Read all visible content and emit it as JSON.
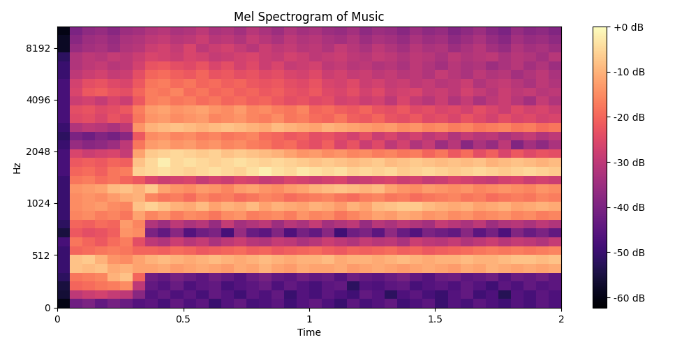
{
  "chart_data": {
    "type": "heatmap",
    "title": "Mel Spectrogram of Music",
    "x_label": "Time",
    "y_label": "Hz",
    "color": "magma",
    "log": "y",
    "xlim": [
      0,
      2
    ],
    "xticks": [
      0,
      0.5,
      1,
      1.5,
      2
    ],
    "ylim": [
      0,
      10955
    ],
    "yticks": [
      0,
      512,
      1024,
      2048,
      4096,
      8192
    ],
    "x": [
      0.025,
      0.075,
      0.125,
      0.175,
      0.225,
      0.275,
      0.325,
      0.375,
      0.425,
      0.475,
      0.525,
      0.575,
      0.625,
      0.675,
      0.725,
      0.775,
      0.825,
      0.875,
      0.925,
      0.975,
      1.025,
      1.075,
      1.125,
      1.175,
      1.225,
      1.275,
      1.325,
      1.375,
      1.425,
      1.475,
      1.525,
      1.575,
      1.625,
      1.675,
      1.725,
      1.775,
      1.825,
      1.875,
      1.925,
      1.975
    ],
    "y": [
      43,
      128,
      213,
      299,
      384,
      469,
      555,
      640,
      725,
      811,
      896,
      981,
      1097,
      1234,
      1389,
      1564,
      1759,
      1981,
      2230,
      2509,
      2825,
      3180,
      3578,
      4028,
      4532,
      5102,
      5744,
      6462,
      7275,
      8191,
      9215,
      10375
    ],
    "cells": [
      [
        -60,
        -42,
        -40,
        -44,
        -41,
        -43,
        -46,
        -45,
        -48,
        -44,
        -47,
        -45,
        -50,
        -46,
        -44,
        -48,
        -47,
        -45,
        -49,
        -46,
        -44,
        -47,
        -50,
        -45,
        -48,
        -46,
        -44,
        -49,
        -47,
        -45,
        -50,
        -46,
        -48,
        -45,
        -47,
        -49,
        -46,
        -48,
        -45,
        -47
      ],
      [
        -56,
        -30,
        -28,
        -27,
        -29,
        -30,
        -38,
        -46,
        -44,
        -47,
        -45,
        -48,
        -44,
        -46,
        -49,
        -45,
        -47,
        -44,
        -50,
        -46,
        -48,
        -45,
        -47,
        -49,
        -44,
        -46,
        -52,
        -47,
        -45,
        -48,
        -50,
        -46,
        -44,
        -49,
        -47,
        -53,
        -46,
        -48,
        -45,
        -47
      ],
      [
        -55,
        -20,
        -19,
        -18,
        -17,
        -15,
        -30,
        -44,
        -46,
        -43,
        -47,
        -45,
        -44,
        -48,
        -46,
        -45,
        -43,
        -47,
        -44,
        -46,
        -48,
        -45,
        -44,
        -52,
        -46,
        -47,
        -45,
        -44,
        -48,
        -46,
        -45,
        -47,
        -44,
        -46,
        -49,
        -45,
        -47,
        -44,
        -46,
        -45
      ],
      [
        -52,
        -18,
        -17,
        -16,
        -10,
        -8,
        -20,
        -42,
        -44,
        -41,
        -43,
        -45,
        -42,
        -44,
        -46,
        -43,
        -41,
        -44,
        -45,
        -42,
        -44,
        -43,
        -46,
        -42,
        -44,
        -45,
        -43,
        -41,
        -44,
        -46,
        -43,
        -42,
        -45,
        -44,
        -42,
        -46,
        -43,
        -44,
        -42,
        -45
      ],
      [
        -50,
        -8,
        -9,
        -8,
        -11,
        -10,
        -12,
        -12,
        -11,
        -13,
        -12,
        -11,
        -12,
        -13,
        -11,
        -12,
        -10,
        -12,
        -13,
        -11,
        -12,
        -12,
        -11,
        -13,
        -12,
        -11,
        -12,
        -13,
        -12,
        -11,
        -12,
        -13,
        -11,
        -12,
        -10,
        -11,
        -12,
        -11,
        -12,
        -11
      ],
      [
        -50,
        -8,
        -7,
        -10,
        -14,
        -15,
        -12,
        -10,
        -9,
        -10,
        -11,
        -10,
        -9,
        -10,
        -11,
        -10,
        -9,
        -10,
        -11,
        -10,
        -10,
        -9,
        -11,
        -10,
        -10,
        -11,
        -10,
        -9,
        -10,
        -11,
        -10,
        -10,
        -9,
        -10,
        -10,
        -9,
        -8,
        -8,
        -9,
        -8
      ],
      [
        -50,
        -20,
        -19,
        -18,
        -17,
        -18,
        -20,
        -20,
        -21,
        -19,
        -20,
        -22,
        -21,
        -20,
        -19,
        -21,
        -20,
        -22,
        -21,
        -20,
        -19,
        -21,
        -22,
        -20,
        -21,
        -20,
        -19,
        -21,
        -20,
        -22,
        -21,
        -20,
        -19,
        -18,
        -17,
        -18,
        -17,
        -18,
        -17,
        -16
      ],
      [
        -48,
        -18,
        -20,
        -22,
        -19,
        -17,
        -24,
        -30,
        -32,
        -28,
        -31,
        -29,
        -33,
        -30,
        -28,
        -31,
        -32,
        -29,
        -30,
        -33,
        -31,
        -28,
        -30,
        -32,
        -29,
        -31,
        -30,
        -33,
        -28,
        -30,
        -31,
        -29,
        -32,
        -30,
        -28,
        -31,
        -29,
        -30,
        -32,
        -29
      ],
      [
        -55,
        -22,
        -24,
        -23,
        -21,
        -14,
        -15,
        -40,
        -44,
        -38,
        -46,
        -42,
        -40,
        -48,
        -36,
        -43,
        -45,
        -39,
        -47,
        -41,
        -44,
        -38,
        -49,
        -42,
        -40,
        -45,
        -37,
        -43,
        -46,
        -40,
        -42,
        -44,
        -38,
        -45,
        -41,
        -47,
        -39,
        -43,
        -40,
        -44
      ],
      [
        -52,
        -20,
        -21,
        -19,
        -20,
        -13,
        -16,
        -32,
        -35,
        -30,
        -33,
        -31,
        -36,
        -29,
        -34,
        -32,
        -30,
        -35,
        -31,
        -33,
        -29,
        -34,
        -32,
        -30,
        -36,
        -31,
        -33,
        -30,
        -32,
        -34,
        -29,
        -31,
        -33,
        -30,
        -35,
        -32,
        -31,
        -33,
        -30,
        -32
      ],
      [
        -50,
        -16,
        -15,
        -17,
        -16,
        -18,
        -12,
        -16,
        -14,
        -17,
        -15,
        -16,
        -18,
        -15,
        -14,
        -17,
        -16,
        -15,
        -17,
        -14,
        -16,
        -15,
        -18,
        -16,
        -14,
        -12,
        -13,
        -11,
        -12,
        -14,
        -13,
        -15,
        -14,
        -16,
        -15,
        -14,
        -16,
        -15,
        -17,
        -16
      ],
      [
        -50,
        -15,
        -14,
        -13,
        -15,
        -16,
        -8,
        -6,
        -8,
        -10,
        -11,
        -9,
        -12,
        -10,
        -11,
        -9,
        -12,
        -10,
        -11,
        -12,
        -10,
        -11,
        -13,
        -10,
        -12,
        -9,
        -8,
        -7,
        -7,
        -9,
        -10,
        -11,
        -10,
        -12,
        -11,
        -10,
        -12,
        -11,
        -10,
        -11
      ],
      [
        -50,
        -15,
        -14,
        -15,
        -13,
        -11,
        -10,
        -16,
        -18,
        -17,
        -19,
        -16,
        -18,
        -17,
        -19,
        -18,
        -16,
        -17,
        -19,
        -18,
        -17,
        -16,
        -18,
        -19,
        -17,
        -16,
        -18,
        -17,
        -19,
        -18,
        -17,
        -16,
        -18,
        -17,
        -19,
        -18,
        -17,
        -18,
        -16,
        -17
      ],
      [
        -50,
        -14,
        -13,
        -12,
        -9,
        -8,
        -10,
        -7,
        -12,
        -14,
        -15,
        -13,
        -14,
        -16,
        -13,
        -12,
        -14,
        -15,
        -13,
        -12,
        -10,
        -9,
        -8,
        -9,
        -10,
        -9,
        -12,
        -14,
        -15,
        -13,
        -14,
        -15,
        -14,
        -16,
        -15,
        -14,
        -15,
        -16,
        -14,
        -15
      ],
      [
        -50,
        -18,
        -17,
        -19,
        -18,
        -20,
        -22,
        -26,
        -28,
        -27,
        -26,
        -29,
        -27,
        -28,
        -26,
        -27,
        -29,
        -28,
        -26,
        -27,
        -28,
        -27,
        -26,
        -29,
        -28,
        -27,
        -26,
        -28,
        -27,
        -29,
        -28,
        -26,
        -27,
        -28,
        -29,
        -27,
        -26,
        -28,
        -27,
        -28
      ],
      [
        -48,
        -20,
        -19,
        -21,
        -18,
        -17,
        -6,
        -5,
        -4,
        -5,
        -6,
        -5,
        -4,
        -5,
        -6,
        -4,
        -2,
        -4,
        -5,
        -3,
        -4,
        -5,
        -4,
        -6,
        -5,
        -6,
        -5,
        -7,
        -6,
        -5,
        -6,
        -7,
        -6,
        -5,
        -6,
        -7,
        -6,
        -5,
        -6,
        -7
      ],
      [
        -48,
        -22,
        -21,
        -22,
        -20,
        -21,
        -8,
        -5,
        -2,
        -5,
        -4,
        -5,
        -6,
        -5,
        -4,
        -5,
        -6,
        -5,
        -6,
        -7,
        -8,
        -7,
        -8,
        -9,
        -8,
        -7,
        -9,
        -8,
        -7,
        -8,
        -9,
        -8,
        -9,
        -8,
        -10,
        -9,
        -8,
        -9,
        -10,
        -9
      ],
      [
        -48,
        -26,
        -28,
        -27,
        -26,
        -29,
        -12,
        -7,
        -6,
        -5,
        -6,
        -7,
        -6,
        -8,
        -7,
        -8,
        -9,
        -10,
        -12,
        -14,
        -13,
        -15,
        -14,
        -16,
        -15,
        -17,
        -16,
        -18,
        -17,
        -20,
        -18,
        -22,
        -19,
        -24,
        -21,
        -26,
        -22,
        -25,
        -23,
        -24
      ],
      [
        -50,
        -36,
        -38,
        -37,
        -35,
        -30,
        -18,
        -13,
        -12,
        -14,
        -13,
        -15,
        -14,
        -16,
        -15,
        -17,
        -18,
        -20,
        -19,
        -22,
        -24,
        -21,
        -26,
        -23,
        -28,
        -25,
        -30,
        -27,
        -32,
        -29,
        -35,
        -31,
        -38,
        -33,
        -36,
        -30,
        -39,
        -34,
        -37,
        -33
      ],
      [
        -52,
        -40,
        -42,
        -39,
        -41,
        -38,
        -22,
        -15,
        -14,
        -16,
        -15,
        -17,
        -16,
        -18,
        -17,
        -16,
        -19,
        -20,
        -22,
        -21,
        -24,
        -23,
        -25,
        -27,
        -24,
        -28,
        -26,
        -29,
        -27,
        -30,
        -28,
        -32,
        -29,
        -31,
        -30,
        -33,
        -31,
        -29,
        -32,
        -30
      ],
      [
        -50,
        -32,
        -30,
        -31,
        -33,
        -30,
        -14,
        -10,
        -9,
        -8,
        -9,
        -10,
        -9,
        -8,
        -9,
        -10,
        -11,
        -9,
        -10,
        -11,
        -12,
        -10,
        -11,
        -12,
        -13,
        -14,
        -13,
        -15,
        -14,
        -16,
        -15,
        -17,
        -16,
        -18,
        -17,
        -16,
        -18,
        -17,
        -19,
        -18
      ],
      [
        -48,
        -25,
        -24,
        -26,
        -23,
        -25,
        -18,
        -14,
        -13,
        -15,
        -14,
        -13,
        -16,
        -15,
        -14,
        -16,
        -17,
        -15,
        -18,
        -17,
        -19,
        -20,
        -18,
        -21,
        -22,
        -20,
        -23,
        -24,
        -22,
        -25,
        -24,
        -26,
        -23,
        -25,
        -27,
        -24,
        -26,
        -25,
        -27,
        -26
      ],
      [
        -48,
        -24,
        -23,
        -25,
        -24,
        -22,
        -17,
        -13,
        -12,
        -14,
        -13,
        -12,
        -14,
        -15,
        -13,
        -16,
        -15,
        -17,
        -18,
        -16,
        -20,
        -19,
        -21,
        -22,
        -20,
        -23,
        -24,
        -22,
        -25,
        -24,
        -26,
        -25,
        -27,
        -24,
        -26,
        -28,
        -25,
        -27,
        -26,
        -28
      ],
      [
        -48,
        -28,
        -27,
        -29,
        -26,
        -28,
        -22,
        -17,
        -16,
        -18,
        -17,
        -19,
        -18,
        -20,
        -19,
        -21,
        -20,
        -22,
        -24,
        -23,
        -25,
        -24,
        -27,
        -26,
        -28,
        -27,
        -30,
        -26,
        -29,
        -31,
        -28,
        -32,
        -29,
        -33,
        -30,
        -28,
        -31,
        -34,
        -29,
        -32
      ],
      [
        -48,
        -26,
        -22,
        -21,
        -23,
        -24,
        -20,
        -17,
        -18,
        -16,
        -19,
        -18,
        -20,
        -19,
        -21,
        -20,
        -22,
        -21,
        -23,
        -24,
        -22,
        -25,
        -26,
        -24,
        -27,
        -25,
        -28,
        -27,
        -26,
        -29,
        -28,
        -30,
        -27,
        -29,
        -31,
        -28,
        -30,
        -29,
        -31,
        -30
      ],
      [
        -48,
        -27,
        -24,
        -23,
        -25,
        -26,
        -22,
        -18,
        -17,
        -19,
        -18,
        -20,
        -19,
        -21,
        -20,
        -22,
        -23,
        -22,
        -24,
        -25,
        -23,
        -26,
        -27,
        -25,
        -28,
        -27,
        -29,
        -28,
        -30,
        -29,
        -31,
        -30,
        -28,
        -32,
        -30,
        -29,
        -31,
        -33,
        -30,
        -32
      ],
      [
        -50,
        -30,
        -28,
        -27,
        -29,
        -28,
        -24,
        -20,
        -19,
        -21,
        -22,
        -20,
        -23,
        -22,
        -24,
        -23,
        -25,
        -24,
        -26,
        -27,
        -25,
        -28,
        -27,
        -29,
        -28,
        -30,
        -29,
        -31,
        -30,
        -32,
        -29,
        -31,
        -33,
        -30,
        -32,
        -31,
        -34,
        -32,
        -30,
        -33
      ],
      [
        -50,
        -32,
        -30,
        -29,
        -31,
        -30,
        -27,
        -23,
        -22,
        -24,
        -25,
        -23,
        -26,
        -24,
        -27,
        -25,
        -28,
        -26,
        -29,
        -28,
        -27,
        -30,
        -29,
        -31,
        -30,
        -32,
        -31,
        -33,
        -30,
        -32,
        -34,
        -31,
        -33,
        -32,
        -35,
        -33,
        -31,
        -34,
        -32,
        -35
      ],
      [
        -52,
        -32,
        -30,
        -31,
        -29,
        -30,
        -28,
        -26,
        -27,
        -28,
        -26,
        -27,
        -29,
        -28,
        -27,
        -26,
        -28,
        -29,
        -27,
        -28,
        -30,
        -29,
        -28,
        -30,
        -31,
        -29,
        -30,
        -32,
        -30,
        -31,
        -33,
        -30,
        -32,
        -31,
        -30,
        -33,
        -31,
        -32,
        -34,
        -31
      ],
      [
        -58,
        -36,
        -34,
        -33,
        -35,
        -32,
        -31,
        -28,
        -27,
        -29,
        -26,
        -30,
        -28,
        -27,
        -29,
        -31,
        -28,
        -30,
        -29,
        -31,
        -30,
        -32,
        -29,
        -31,
        -33,
        -30,
        -32,
        -34,
        -31,
        -33,
        -32,
        -35,
        -33,
        -31,
        -34,
        -36,
        -32,
        -34,
        -33,
        -35
      ],
      [
        -58,
        -38,
        -35,
        -34,
        -36,
        -33,
        -32,
        -30,
        -29,
        -31,
        -30,
        -28,
        -31,
        -30,
        -32,
        -29,
        -31,
        -33,
        -30,
        -32,
        -31,
        -33,
        -34,
        -32,
        -35,
        -33,
        -34,
        -36,
        -33,
        -35,
        -34,
        -37,
        -35,
        -33,
        -36,
        -38,
        -34,
        -36,
        -35,
        -37
      ],
      [
        -60,
        -40,
        -37,
        -36,
        -38,
        -35,
        -34,
        -32,
        -31,
        -33,
        -32,
        -30,
        -33,
        -32,
        -34,
        -31,
        -33,
        -35,
        -32,
        -34,
        -33,
        -35,
        -36,
        -34,
        -37,
        -35,
        -36,
        -38,
        -35,
        -37,
        -36,
        -39,
        -37,
        -35,
        -38,
        -40,
        -36,
        -38,
        -37,
        -39
      ]
    ],
    "colorbar_range": [
      -62.3,
      0
    ],
    "colorbar_ticks": [
      {
        "value": 0,
        "label": "+0 dB"
      },
      {
        "value": -10,
        "label": "-10 dB"
      },
      {
        "value": -20,
        "label": "-20 dB"
      },
      {
        "value": -30,
        "label": "-30 dB"
      },
      {
        "value": -40,
        "label": "-40 dB"
      },
      {
        "value": -50,
        "label": "-50 dB"
      },
      {
        "value": -60,
        "label": "-60 dB"
      }
    ]
  }
}
